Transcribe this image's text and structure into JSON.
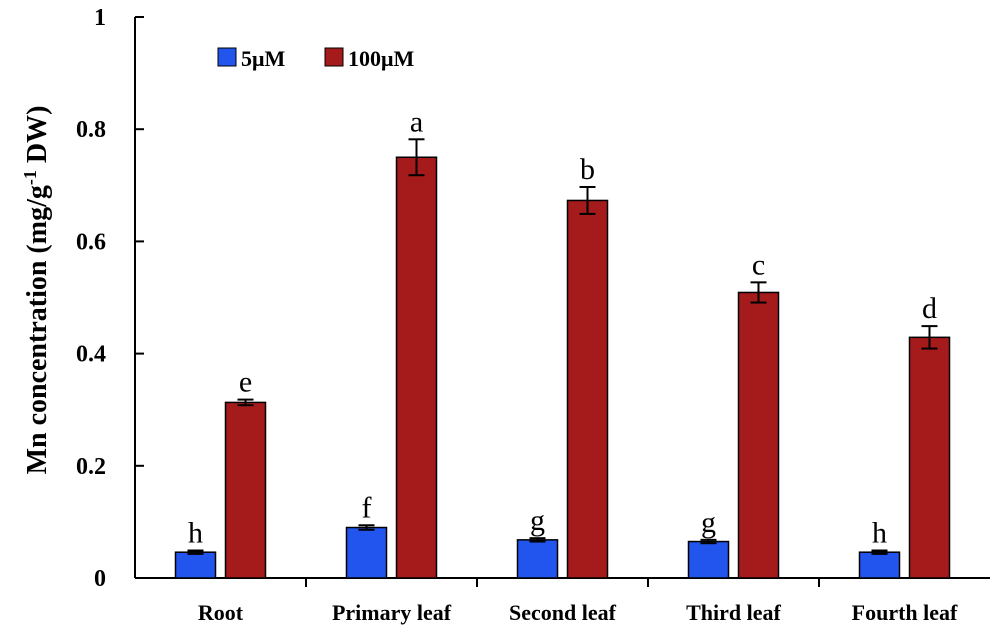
{
  "chart_data": {
    "type": "bar",
    "title": "",
    "xlabel": "",
    "ylabel": {
      "main": "Mn concentration (mg/g",
      "sup": "-1",
      "end": " DW)"
    },
    "ylim": [
      0,
      1
    ],
    "yticks": [
      0,
      0.2,
      0.4,
      0.6,
      0.8,
      1
    ],
    "ytick_labels": [
      "0",
      "0.2",
      "0.4",
      "0.6",
      "0.8",
      "1"
    ],
    "categories": [
      "Root",
      "Primary leaf",
      "Second leaf",
      "Third leaf",
      "Fourth leaf"
    ],
    "series": [
      {
        "name": "5μM",
        "color": "#2255ee",
        "values": [
          0.046,
          0.09,
          0.068,
          0.065,
          0.046
        ],
        "errors": [
          0.003,
          0.004,
          0.003,
          0.003,
          0.003
        ],
        "labels": [
          "h",
          "f",
          "g",
          "g",
          "h"
        ]
      },
      {
        "name": "100μM",
        "color": "#a51a1a",
        "values": [
          0.313,
          0.75,
          0.673,
          0.509,
          0.429
        ],
        "errors": [
          0.005,
          0.032,
          0.024,
          0.018,
          0.02
        ],
        "labels": [
          "e",
          "a",
          "b",
          "c",
          "d"
        ]
      }
    ],
    "legend": "top-left",
    "grid": false
  }
}
